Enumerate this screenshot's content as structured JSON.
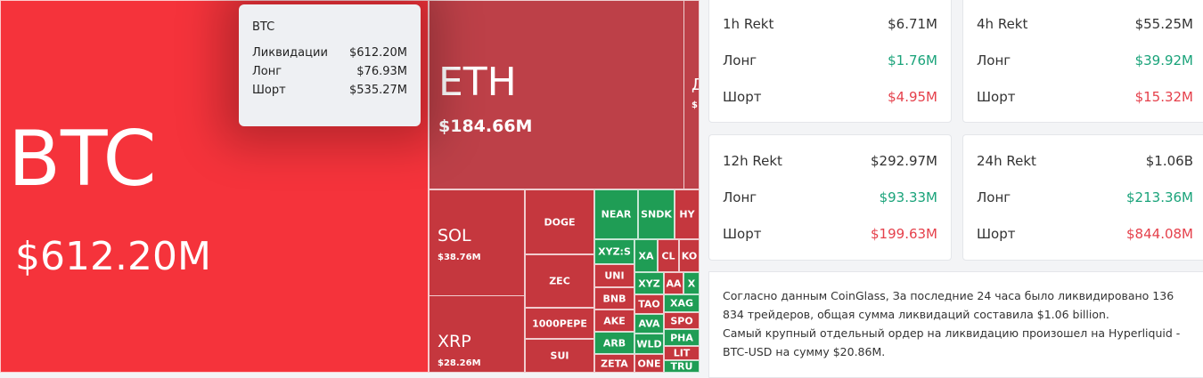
{
  "treemap": {
    "tiles": [
      {
        "label": "BTC",
        "value": "$612.20M"
      },
      {
        "label": "ETH",
        "value": "$184.66M"
      },
      {
        "label": "Д",
        "value": "$"
      },
      {
        "label": "SOL",
        "value": "$38.76M"
      },
      {
        "label": "XRP",
        "value": "$28.26M"
      },
      {
        "label": "DOGE"
      },
      {
        "label": "ZEC"
      },
      {
        "label": "1000PEPE"
      },
      {
        "label": "SUI"
      },
      {
        "label": "NEAR"
      },
      {
        "label": "SNDK"
      },
      {
        "label": "HY"
      },
      {
        "label": "XYZ:S"
      },
      {
        "label": "XA"
      },
      {
        "label": "CL"
      },
      {
        "label": "KO"
      },
      {
        "label": "UNI"
      },
      {
        "label": "XYZ"
      },
      {
        "label": "AA"
      },
      {
        "label": "X"
      },
      {
        "label": "BNB"
      },
      {
        "label": "TAO"
      },
      {
        "label": "XAG"
      },
      {
        "label": "AKE"
      },
      {
        "label": "AVA"
      },
      {
        "label": "SPO"
      },
      {
        "label": "ARB"
      },
      {
        "label": "WLD"
      },
      {
        "label": "PHA"
      },
      {
        "label": "ZETA"
      },
      {
        "label": "ONE"
      },
      {
        "label": "LIT"
      },
      {
        "label": "TRU"
      }
    ]
  },
  "tooltip": {
    "title": "BTC",
    "rows": [
      {
        "label": "Ликвидации",
        "value": "$612.20M"
      },
      {
        "label": "Лонг",
        "value": "$76.93M"
      },
      {
        "label": "Шорт",
        "value": "$535.27M"
      }
    ]
  },
  "stats": [
    {
      "title": "1h Rekt",
      "total": "$6.71M",
      "long_label": "Лонг",
      "long": "$1.76M",
      "short_label": "Шорт",
      "short": "$4.95M"
    },
    {
      "title": "4h Rekt",
      "total": "$55.25M",
      "long_label": "Лонг",
      "long": "$39.92M",
      "short_label": "Шорт",
      "short": "$15.32M"
    },
    {
      "title": "12h Rekt",
      "total": "$292.97M",
      "long_label": "Лонг",
      "long": "$93.33M",
      "short_label": "Шорт",
      "short": "$199.63M"
    },
    {
      "title": "24h Rekt",
      "total": "$1.06B",
      "long_label": "Лонг",
      "long": "$213.36M",
      "short_label": "Шорт",
      "short": "$844.08M"
    }
  ],
  "summary": [
    "Согласно данным CoinGlass, За последние 24 часа было ликвидировано 136 834 трейдеров, общая сумма ликвидаций составила $1.06 billion.",
    "Самый крупный отдельный ордер на ликвидацию произошел на Hyperliquid - BTC-USD на сумму $20.86M."
  ]
}
